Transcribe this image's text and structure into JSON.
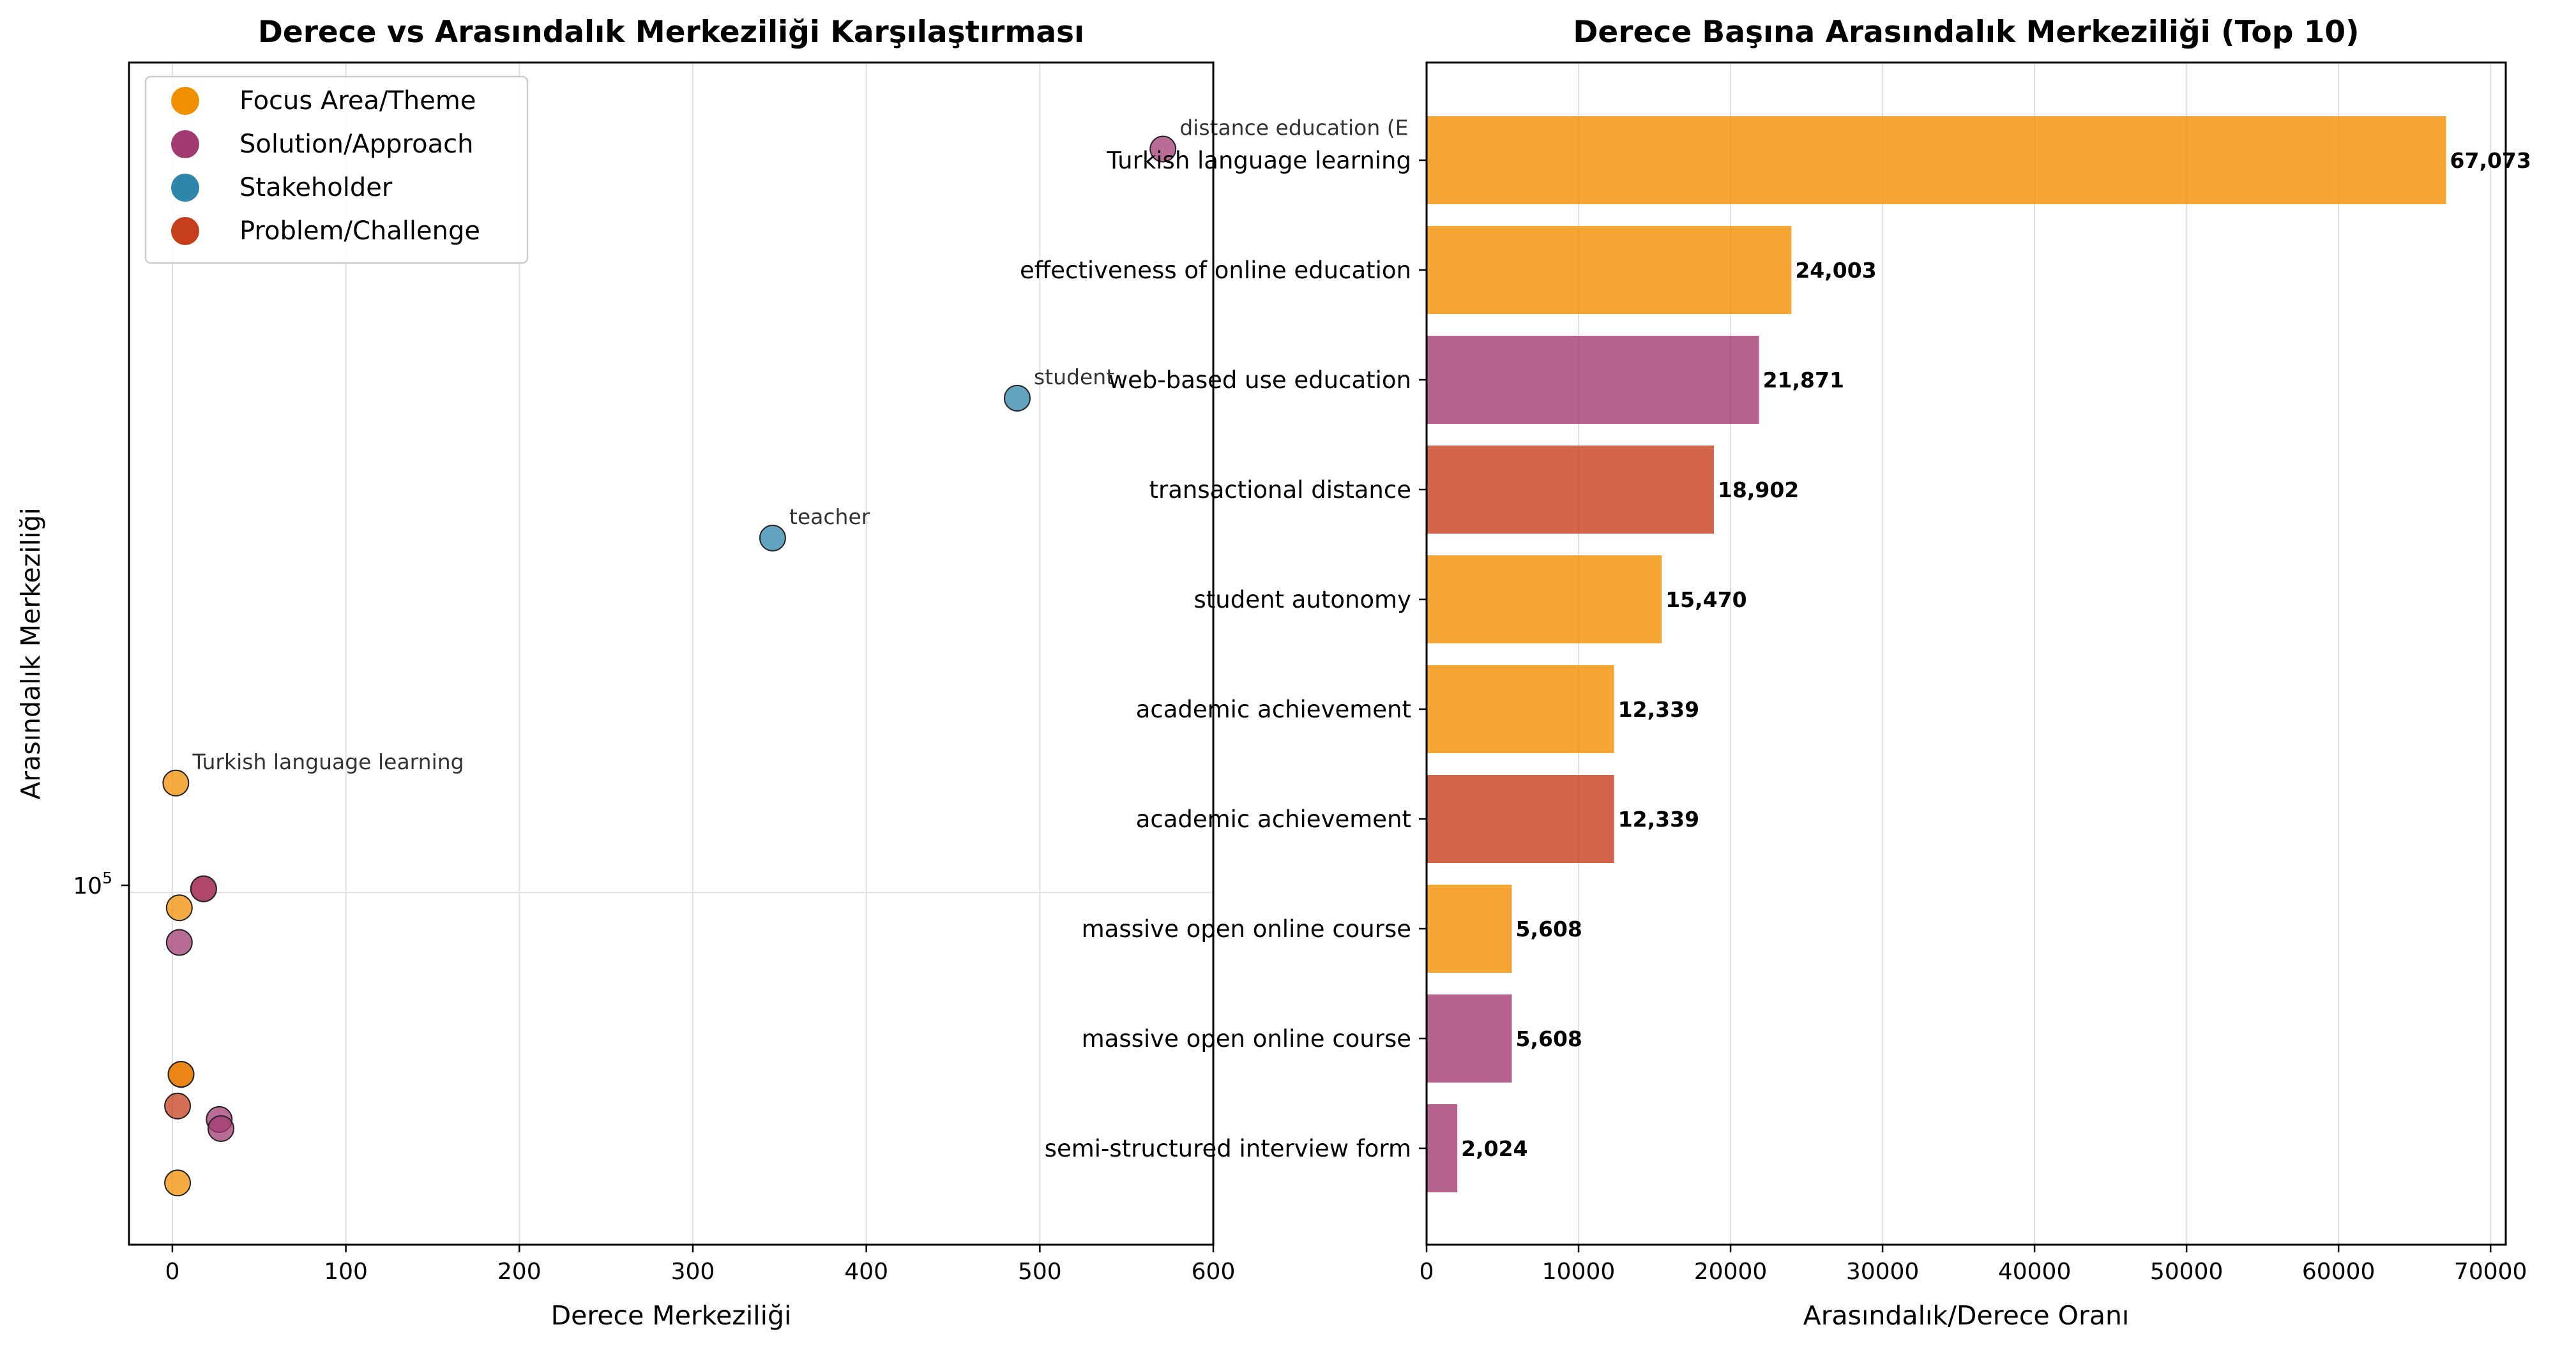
{
  "colors": {
    "focus": "#F18F01",
    "solution": "#A23B72",
    "stakeholder": "#2E86AB",
    "problem": "#C73E1D"
  },
  "chart_data": [
    {
      "type": "scatter",
      "title": "Derece vs Arasındalık Merkeziliği Karşılaştırması",
      "xlabel": "Derece Merkeziliği",
      "ylabel": "Arasındalık Merkeziliği",
      "xlim": [
        -25,
        600
      ],
      "ylim": [
        39000,
        920000
      ],
      "yscale": "log",
      "xticks": [
        0,
        100,
        200,
        300,
        400,
        500,
        600
      ],
      "yticks": [
        {
          "value": 100000,
          "base": "10",
          "exp": "5"
        }
      ],
      "grid": true,
      "legend_position": "top-left",
      "legend": [
        {
          "label": "Focus Area/Theme",
          "color": "#F18F01"
        },
        {
          "label": "Solution/Approach",
          "color": "#A23B72"
        },
        {
          "label": "Stakeholder",
          "color": "#2E86AB"
        },
        {
          "label": "Problem/Challenge",
          "color": "#C73E1D"
        }
      ],
      "points": [
        {
          "x": 571,
          "y": 730000,
          "category": "solution",
          "color": "#A23B72",
          "label": "distance education (E"
        },
        {
          "x": 487,
          "y": 375000,
          "category": "stakeholder",
          "color": "#2E86AB",
          "label": "student"
        },
        {
          "x": 346,
          "y": 258000,
          "category": "stakeholder",
          "color": "#2E86AB",
          "label": "teacher"
        },
        {
          "x": 2,
          "y": 134000,
          "category": "focus",
          "color": "#F18F01",
          "label": "Turkish language learning"
        },
        {
          "x": 18,
          "y": 101000,
          "category": "problem",
          "color": "#C73E1D",
          "label": ""
        },
        {
          "x": 18,
          "y": 101000,
          "category": "solution",
          "color": "#A23B72",
          "label": ""
        },
        {
          "x": 4,
          "y": 96000,
          "category": "focus",
          "color": "#F18F01",
          "label": ""
        },
        {
          "x": 4,
          "y": 87500,
          "category": "solution",
          "color": "#A23B72",
          "label": ""
        },
        {
          "x": 5,
          "y": 61500,
          "category": "problem",
          "color": "#C73E1D",
          "label": ""
        },
        {
          "x": 5,
          "y": 61500,
          "category": "focus",
          "color": "#F18F01",
          "label": ""
        },
        {
          "x": 3,
          "y": 56500,
          "category": "problem",
          "color": "#C73E1D",
          "label": ""
        },
        {
          "x": 27,
          "y": 54500,
          "category": "solution",
          "color": "#A23B72",
          "label": ""
        },
        {
          "x": 28,
          "y": 53200,
          "category": "solution",
          "color": "#A23B72",
          "label": ""
        },
        {
          "x": 3,
          "y": 46000,
          "category": "focus",
          "color": "#F18F01",
          "label": ""
        }
      ]
    },
    {
      "type": "bar",
      "orientation": "horizontal",
      "title": "Derece Başına Arasındalık Merkeziliği (Top 10)",
      "xlabel": "Arasındalık/Derece Oranı",
      "ylabel": "",
      "xlim": [
        0,
        71000
      ],
      "xticks": [
        0,
        10000,
        20000,
        30000,
        40000,
        50000,
        60000,
        70000
      ],
      "grid": true,
      "categories": [
        "Turkish language learning",
        "effectiveness of online education",
        "web-based use education",
        "transactional distance",
        "student autonomy",
        "academic achievement",
        "academic achievement",
        "massive open online course",
        "massive open online course",
        "semi-structured interview form"
      ],
      "values": [
        67073,
        24003,
        21871,
        18902,
        15470,
        12339,
        12339,
        5608,
        5608,
        2024
      ],
      "value_labels": [
        "67,073",
        "24,003",
        "21,871",
        "18,902",
        "15,470",
        "12,339",
        "12,339",
        "5,608",
        "5,608",
        "2,024"
      ],
      "bar_categories": [
        "focus",
        "focus",
        "solution",
        "problem",
        "focus",
        "focus",
        "problem",
        "focus",
        "solution",
        "solution"
      ],
      "bar_colors": [
        "#F18F01",
        "#F18F01",
        "#A23B72",
        "#C73E1D",
        "#F18F01",
        "#F18F01",
        "#C73E1D",
        "#F18F01",
        "#A23B72",
        "#A23B72"
      ]
    }
  ]
}
